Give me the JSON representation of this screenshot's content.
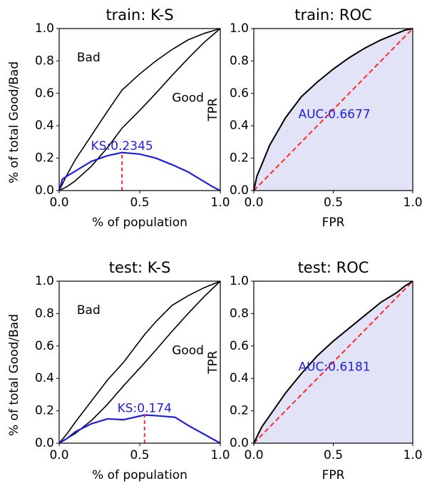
{
  "chart_data": [
    {
      "type": "line",
      "title": "train: K-S",
      "xlabel": "% of population",
      "ylabel": "% of total Good/Bad",
      "xlim": [
        0,
        1
      ],
      "ylim": [
        0,
        1
      ],
      "xticks": [
        "0.0",
        "0.5",
        "1.0"
      ],
      "yticks": [
        "0.0",
        "0.2",
        "0.4",
        "0.6",
        "0.8",
        "1.0"
      ],
      "annotations": [
        "Bad",
        "Good"
      ],
      "ks_label": "KS:0.2345",
      "ks_value": 0.2345,
      "ks_x": 0.39,
      "series": [
        {
          "name": "Bad",
          "color": "#000000",
          "x": [
            0,
            0.05,
            0.1,
            0.2,
            0.3,
            0.39,
            0.5,
            0.6,
            0.7,
            0.8,
            0.9,
            1.0
          ],
          "y": [
            0,
            0.1,
            0.19,
            0.34,
            0.49,
            0.62,
            0.72,
            0.8,
            0.87,
            0.93,
            0.97,
            1.0
          ]
        },
        {
          "name": "Good",
          "color": "#000000",
          "x": [
            0,
            0.05,
            0.1,
            0.2,
            0.3,
            0.39,
            0.5,
            0.6,
            0.7,
            0.8,
            0.9,
            1.0
          ],
          "y": [
            0,
            0.025,
            0.06,
            0.15,
            0.265,
            0.385,
            0.495,
            0.6,
            0.71,
            0.815,
            0.915,
            1.0
          ]
        },
        {
          "name": "KS",
          "color": "#1f1fe0",
          "x": [
            0,
            0.02,
            0.05,
            0.1,
            0.2,
            0.3,
            0.39,
            0.5,
            0.6,
            0.7,
            0.8,
            0.9,
            0.95,
            1.0
          ],
          "y": [
            0,
            0.07,
            0.09,
            0.12,
            0.18,
            0.215,
            0.2345,
            0.225,
            0.2,
            0.16,
            0.115,
            0.055,
            0.025,
            0
          ]
        }
      ]
    },
    {
      "type": "area",
      "title": "train: ROC",
      "xlabel": "FPR",
      "ylabel": "TPR",
      "xlim": [
        0,
        1
      ],
      "ylim": [
        0,
        1
      ],
      "xticks": [
        "0.0",
        "0.5",
        "1.0"
      ],
      "yticks": [
        "0.0",
        "0.2",
        "0.4",
        "0.6",
        "0.8",
        "1.0"
      ],
      "auc_label": "AUC:0.6677",
      "fill_color": "#e3e3f8",
      "roc": {
        "fpr": [
          0,
          0.02,
          0.05,
          0.1,
          0.2,
          0.3,
          0.4,
          0.5,
          0.6,
          0.7,
          0.8,
          0.9,
          0.95,
          1.0
        ],
        "tpr": [
          0,
          0.09,
          0.16,
          0.28,
          0.45,
          0.58,
          0.67,
          0.75,
          0.82,
          0.88,
          0.93,
          0.97,
          0.99,
          1.0
        ]
      }
    },
    {
      "type": "line",
      "title": "test: K-S",
      "xlabel": "% of population",
      "ylabel": "% of total Good/Bad",
      "xlim": [
        0,
        1
      ],
      "ylim": [
        0,
        1
      ],
      "xticks": [
        "0.0",
        "0.5",
        "1.0"
      ],
      "yticks": [
        "0.0",
        "0.2",
        "0.4",
        "0.6",
        "0.8",
        "1.0"
      ],
      "annotations": [
        "Bad",
        "Good"
      ],
      "ks_label": "KS:0.174",
      "ks_value": 0.174,
      "ks_x": 0.53,
      "series": [
        {
          "name": "Bad",
          "color": "#000000",
          "x": [
            0,
            0.05,
            0.1,
            0.2,
            0.3,
            0.4,
            0.53,
            0.6,
            0.7,
            0.8,
            0.9,
            1.0
          ],
          "y": [
            0,
            0.06,
            0.13,
            0.26,
            0.39,
            0.5,
            0.67,
            0.75,
            0.85,
            0.91,
            0.96,
            1.0
          ]
        },
        {
          "name": "Good",
          "color": "#000000",
          "x": [
            0,
            0.05,
            0.1,
            0.2,
            0.3,
            0.4,
            0.53,
            0.6,
            0.7,
            0.8,
            0.9,
            1.0
          ],
          "y": [
            0,
            0.03,
            0.06,
            0.14,
            0.24,
            0.355,
            0.496,
            0.575,
            0.69,
            0.8,
            0.905,
            1.0
          ]
        },
        {
          "name": "KS",
          "color": "#1f1fe0",
          "x": [
            0,
            0.05,
            0.1,
            0.2,
            0.3,
            0.4,
            0.53,
            0.6,
            0.72,
            0.8,
            0.9,
            1.0
          ],
          "y": [
            0,
            0.03,
            0.07,
            0.12,
            0.15,
            0.145,
            0.174,
            0.17,
            0.16,
            0.11,
            0.055,
            0
          ]
        }
      ]
    },
    {
      "type": "area",
      "title": "test: ROC",
      "xlabel": "FPR",
      "ylabel": "TPR",
      "xlim": [
        0,
        1
      ],
      "ylim": [
        0,
        1
      ],
      "xticks": [
        "0.0",
        "0.5",
        "1.0"
      ],
      "yticks": [
        "0.0",
        "0.2",
        "0.4",
        "0.6",
        "0.8",
        "1.0"
      ],
      "auc_label": "AUC:0.6181",
      "fill_color": "#e3e3f8",
      "roc": {
        "fpr": [
          0,
          0.05,
          0.1,
          0.2,
          0.3,
          0.4,
          0.5,
          0.6,
          0.7,
          0.8,
          0.9,
          0.95,
          1.0
        ],
        "tpr": [
          0,
          0.1,
          0.17,
          0.31,
          0.43,
          0.54,
          0.63,
          0.71,
          0.79,
          0.87,
          0.93,
          0.97,
          1.0
        ]
      }
    }
  ]
}
